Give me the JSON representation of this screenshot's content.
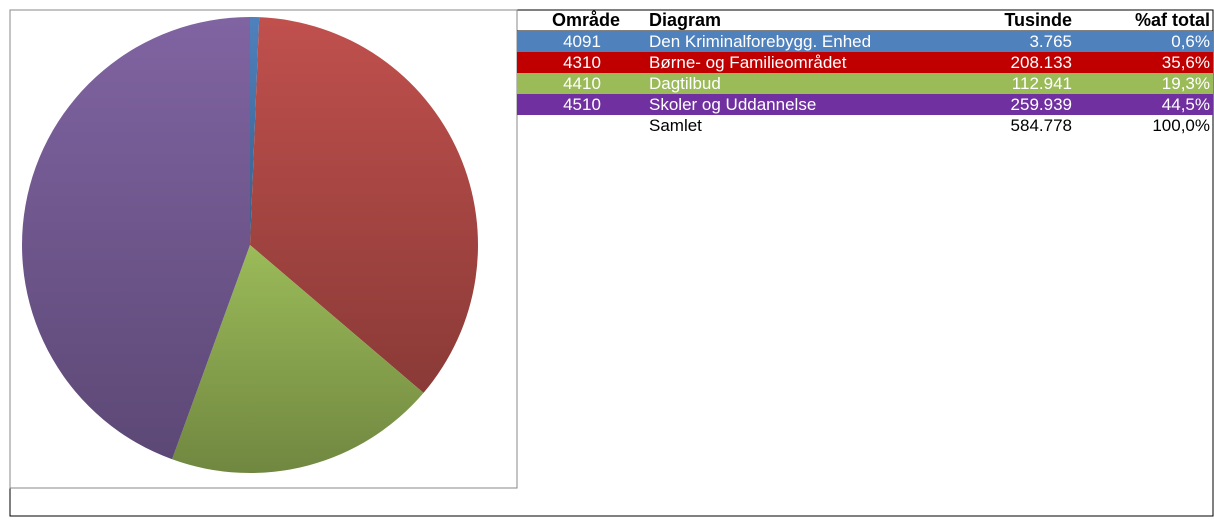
{
  "chart_data": {
    "type": "pie",
    "categories": [
      "Den Kriminalforebygg. Enhed",
      "Børne- og Familieområdet",
      "Dagtilbud",
      "Skoler og Uddannelse"
    ],
    "values": [
      3765,
      208133,
      112941,
      259939
    ],
    "value_labels": [
      "3.765",
      "208.133",
      "112.941",
      "259.939"
    ],
    "colors": [
      "#4f81bd",
      "#c0504d",
      "#9bbb59",
      "#8064a2"
    ],
    "row_colors": [
      "#4f81bd",
      "#c00000",
      "#9bbb59",
      "#7030a0"
    ]
  },
  "table": {
    "columns": [
      "Område",
      "Diagram",
      "Tusinde",
      "%af total"
    ],
    "codes": [
      "4091",
      "4310",
      "4410",
      "4510"
    ],
    "shares": [
      0.6,
      35.6,
      19.3,
      44.5
    ],
    "share_labels": [
      "0,6%",
      "35,6%",
      "19,3%",
      "44,5%"
    ],
    "total": {
      "label": "Samlet",
      "value": 584778,
      "value_label": "584.778",
      "share_label": "100,0%"
    }
  }
}
